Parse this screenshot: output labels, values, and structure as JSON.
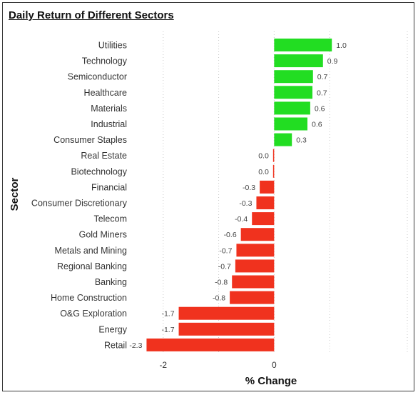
{
  "chart_data": {
    "type": "bar",
    "orientation": "horizontal",
    "title": "Daily Return of Different Sectors",
    "xlabel": "% Change",
    "ylabel": "Sector",
    "categories": [
      "Utilities",
      "Technology",
      "Semiconductor",
      "Healthcare",
      "Materials",
      "Industrial",
      "Consumer Staples",
      "Real Estate",
      "Biotechnology",
      "Financial",
      "Consumer Discretionary",
      "Telecom",
      "Gold Miners",
      "Metals and Mining",
      "Regional Banking",
      "Banking",
      "Home Construction",
      "O&G Exploration",
      "Energy",
      "Retail"
    ],
    "values": [
      1.04,
      0.88,
      0.7,
      0.69,
      0.65,
      0.6,
      0.32,
      -0.01,
      -0.01,
      -0.26,
      -0.32,
      -0.4,
      -0.6,
      -0.68,
      -0.7,
      -0.76,
      -0.8,
      -1.72,
      -1.72,
      -2.3
    ],
    "value_labels": [
      "1.0",
      "0.9",
      "0.7",
      "0.7",
      "0.6",
      "0.6",
      "0.3",
      "0.0",
      "0.0",
      "-0.3",
      "-0.3",
      "-0.4",
      "-0.6",
      "-0.7",
      "-0.7",
      "-0.8",
      "-0.8",
      "-1.7",
      "-1.7",
      "-2.3"
    ],
    "xticks": [
      -2,
      0
    ],
    "xtick_labels": [
      "-2",
      "0"
    ],
    "xlim": [
      -2.37,
      1.95
    ],
    "colors": {
      "positive": "#22dd22",
      "negative": "#f0321e",
      "grid": "#c8c8c8"
    },
    "grid": "vertical dotted",
    "legend": "none"
  }
}
